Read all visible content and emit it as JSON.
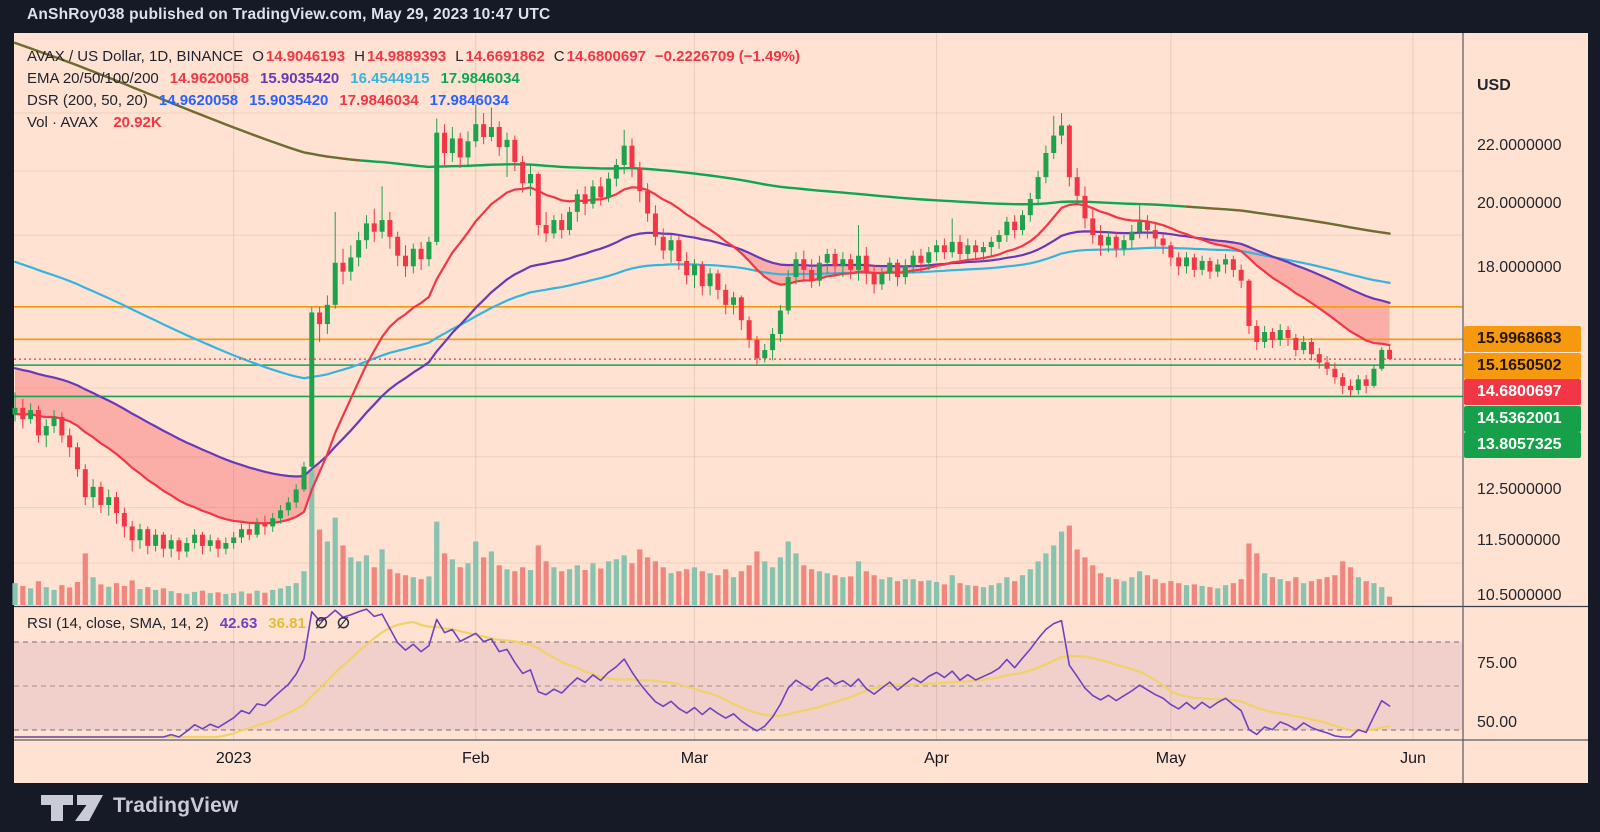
{
  "header": {
    "text": "AnShRoy038 published on TradingView.com, May 29, 2023 10:47 UTC"
  },
  "footer": {
    "brand": "TradingView"
  },
  "legend": {
    "symbol": {
      "title": "AVAX / US Dollar, 1D, BINANCE",
      "items": [
        {
          "k": "O",
          "v": "14.9046193"
        },
        {
          "k": "H",
          "v": "14.9889393"
        },
        {
          "k": "L",
          "v": "14.6691862"
        },
        {
          "k": "C",
          "v": "14.6800697"
        }
      ],
      "change": "−0.2226709 (−1.49%)",
      "value_color": "#f23645"
    },
    "ema": {
      "title": "EMA 20/50/100/200",
      "values": [
        {
          "text": "14.9620058",
          "color": "#f23645"
        },
        {
          "text": "15.9035420",
          "color": "#673ab7"
        },
        {
          "text": "16.4544915",
          "color": "#33b5e0"
        },
        {
          "text": "17.9846034",
          "color": "#0ca750"
        }
      ]
    },
    "dsr": {
      "title": "DSR (200, 50, 20)",
      "values": [
        {
          "text": "14.9620058",
          "color": "#2962ff"
        },
        {
          "text": "15.9035420",
          "color": "#2962ff"
        },
        {
          "text": "17.9846034",
          "color": "#f23645"
        },
        {
          "text": "17.9846034",
          "color": "#2962ff"
        }
      ]
    },
    "vol": {
      "title": "Vol · AVAX",
      "value": "20.92K",
      "value_color": "#f23645"
    }
  },
  "rsi_legend": {
    "title": "RSI (14, close, SMA, 14, 2)",
    "values": [
      {
        "text": "42.63",
        "color": "#6f42c1"
      },
      {
        "text": "36.81",
        "color": "#e3bd37"
      }
    ],
    "icons": [
      "empty-set-icon",
      "empty-set-icon"
    ]
  },
  "price_axis": {
    "unit": "USD",
    "ticks": [
      {
        "price": 22,
        "label": "22.0000000"
      },
      {
        "price": 20,
        "label": "20.0000000"
      },
      {
        "price": 18,
        "label": "18.0000000"
      },
      {
        "price": 12.5,
        "label": "12.5000000"
      },
      {
        "price": 11.5,
        "label": "11.5000000"
      },
      {
        "price": 10.5,
        "label": "10.5000000"
      }
    ],
    "badges": [
      {
        "label": "15.9968683",
        "price": 15.9968683,
        "bg": "#f7990f",
        "fg": "#241603"
      },
      {
        "label": "15.1650502",
        "price": 15.1650502,
        "bg": "#f7990f",
        "fg": "#241603"
      },
      {
        "label": "14.6800697",
        "price": 14.6800697,
        "bg": "#f23645",
        "fg": "#ffffff",
        "last": true
      },
      {
        "label": "14.5362001",
        "price": 14.5362001,
        "bg": "#16a049",
        "fg": "#ffffff"
      },
      {
        "label": "13.8057325",
        "price": 13.8057325,
        "bg": "#16a049",
        "fg": "#ffffff"
      }
    ]
  },
  "rsi_axis": {
    "ticks": [
      {
        "value": 75,
        "label": "75.00"
      },
      {
        "value": 50,
        "label": "50.00"
      }
    ]
  },
  "time_axis": {
    "labels": [
      {
        "label": "2023",
        "i": 28
      },
      {
        "label": "Feb",
        "i": 59
      },
      {
        "label": "Mar",
        "i": 87
      },
      {
        "label": "Apr",
        "i": 118
      },
      {
        "label": "May",
        "i": 148
      },
      {
        "label": "Jun",
        "i": 179
      }
    ]
  },
  "chart_data": {
    "type": "candlestick",
    "title": "AVAX / US Dollar, 1D, BINANCE",
    "interval": "1D",
    "scale": "log",
    "start_date": "2022-12-04",
    "ohlc_last": {
      "o": 14.9046193,
      "h": 14.9889393,
      "l": 14.6691862,
      "c": 14.6800697,
      "change": -0.2226709,
      "change_pct": -1.49
    },
    "first_open": 13.4,
    "candles_hlc": [
      [
        13.9,
        13.25,
        13.55
      ],
      [
        13.75,
        13.1,
        13.3
      ],
      [
        13.65,
        13.2,
        13.5
      ],
      [
        13.6,
        12.8,
        12.95
      ],
      [
        13.3,
        12.7,
        13.15
      ],
      [
        13.5,
        13.0,
        13.35
      ],
      [
        13.45,
        12.8,
        12.95
      ],
      [
        13.1,
        12.5,
        12.7
      ],
      [
        12.8,
        12.1,
        12.25
      ],
      [
        12.35,
        11.55,
        11.7
      ],
      [
        12.05,
        11.5,
        11.9
      ],
      [
        12.0,
        11.4,
        11.55
      ],
      [
        11.85,
        11.35,
        11.7
      ],
      [
        11.8,
        11.2,
        11.4
      ],
      [
        11.5,
        10.95,
        11.15
      ],
      [
        11.25,
        10.7,
        10.9
      ],
      [
        11.2,
        10.75,
        11.1
      ],
      [
        11.15,
        10.65,
        10.8
      ],
      [
        11.1,
        10.7,
        11.0
      ],
      [
        11.05,
        10.6,
        10.75
      ],
      [
        11.0,
        10.6,
        10.9
      ],
      [
        10.95,
        10.55,
        10.7
      ],
      [
        10.95,
        10.6,
        10.85
      ],
      [
        11.1,
        10.75,
        11.0
      ],
      [
        11.05,
        10.65,
        10.8
      ],
      [
        11.0,
        10.7,
        10.9
      ],
      [
        10.95,
        10.6,
        10.75
      ],
      [
        10.95,
        10.65,
        10.85
      ],
      [
        11.05,
        10.75,
        10.95
      ],
      [
        11.2,
        10.85,
        11.1
      ],
      [
        11.2,
        10.9,
        11.0
      ],
      [
        11.3,
        10.95,
        11.2
      ],
      [
        11.35,
        11.0,
        11.15
      ],
      [
        11.4,
        11.05,
        11.3
      ],
      [
        11.55,
        11.2,
        11.45
      ],
      [
        11.7,
        11.35,
        11.6
      ],
      [
        11.95,
        11.5,
        11.85
      ],
      [
        12.4,
        11.8,
        12.3
      ],
      [
        16.0,
        12.25,
        15.85
      ],
      [
        16.0,
        15.1,
        15.55
      ],
      [
        16.3,
        15.3,
        16.05
      ],
      [
        18.7,
        15.95,
        17.2
      ],
      [
        17.6,
        16.6,
        16.95
      ],
      [
        17.7,
        16.7,
        17.35
      ],
      [
        18.1,
        17.1,
        17.85
      ],
      [
        18.6,
        17.6,
        18.35
      ],
      [
        18.8,
        17.8,
        18.1
      ],
      [
        19.5,
        17.9,
        18.45
      ],
      [
        18.7,
        17.6,
        17.95
      ],
      [
        18.1,
        17.1,
        17.4
      ],
      [
        17.7,
        16.8,
        17.1
      ],
      [
        17.75,
        16.9,
        17.6
      ],
      [
        17.8,
        17.0,
        17.3
      ],
      [
        17.95,
        17.1,
        17.8
      ],
      [
        21.8,
        17.7,
        21.3
      ],
      [
        21.6,
        20.2,
        20.6
      ],
      [
        21.5,
        20.3,
        21.1
      ],
      [
        21.3,
        20.1,
        20.45
      ],
      [
        21.35,
        20.2,
        21.0
      ],
      [
        22.3,
        20.8,
        21.6
      ],
      [
        22.0,
        20.9,
        21.15
      ],
      [
        22.2,
        21.0,
        21.5
      ],
      [
        21.7,
        20.5,
        20.8
      ],
      [
        21.3,
        19.8,
        21.05
      ],
      [
        21.2,
        20.0,
        20.3
      ],
      [
        20.5,
        19.3,
        19.6
      ],
      [
        20.2,
        19.2,
        19.9
      ],
      [
        19.95,
        18.0,
        18.3
      ],
      [
        18.7,
        17.8,
        18.05
      ],
      [
        18.6,
        17.9,
        18.45
      ],
      [
        18.65,
        17.9,
        18.15
      ],
      [
        18.85,
        18.0,
        18.7
      ],
      [
        19.4,
        18.4,
        19.25
      ],
      [
        19.5,
        18.6,
        18.95
      ],
      [
        19.7,
        18.8,
        19.5
      ],
      [
        19.8,
        18.9,
        19.15
      ],
      [
        19.95,
        19.0,
        19.75
      ],
      [
        20.4,
        19.5,
        20.2
      ],
      [
        21.4,
        19.9,
        20.85
      ],
      [
        21.1,
        19.8,
        20.1
      ],
      [
        20.3,
        19.0,
        19.35
      ],
      [
        19.6,
        18.4,
        18.65
      ],
      [
        18.9,
        17.7,
        17.95
      ],
      [
        18.2,
        17.3,
        17.55
      ],
      [
        18.0,
        17.2,
        17.85
      ],
      [
        18.0,
        17.0,
        17.25
      ],
      [
        17.5,
        16.6,
        16.85
      ],
      [
        17.3,
        16.5,
        17.15
      ],
      [
        17.25,
        16.3,
        16.55
      ],
      [
        17.05,
        16.3,
        16.9
      ],
      [
        17.0,
        16.2,
        16.45
      ],
      [
        16.6,
        15.8,
        16.05
      ],
      [
        16.4,
        15.8,
        16.25
      ],
      [
        16.3,
        15.4,
        15.65
      ],
      [
        15.75,
        14.95,
        15.15
      ],
      [
        15.25,
        14.54,
        14.7
      ],
      [
        15.05,
        14.6,
        14.9
      ],
      [
        15.45,
        14.65,
        15.3
      ],
      [
        16.05,
        15.1,
        15.9
      ],
      [
        17.0,
        15.8,
        16.8
      ],
      [
        17.5,
        16.6,
        17.3
      ],
      [
        17.55,
        16.7,
        17.0
      ],
      [
        17.3,
        16.5,
        16.7
      ],
      [
        17.4,
        16.55,
        17.2
      ],
      [
        17.6,
        16.9,
        17.45
      ],
      [
        17.6,
        16.85,
        17.1
      ],
      [
        17.5,
        16.8,
        17.3
      ],
      [
        17.45,
        16.75,
        17.0
      ],
      [
        18.3,
        16.7,
        17.4
      ],
      [
        17.65,
        16.6,
        16.9
      ],
      [
        17.15,
        16.35,
        16.6
      ],
      [
        17.05,
        16.45,
        16.9
      ],
      [
        17.35,
        16.7,
        17.2
      ],
      [
        17.3,
        16.55,
        16.8
      ],
      [
        17.3,
        16.6,
        17.1
      ],
      [
        17.55,
        16.9,
        17.4
      ],
      [
        17.6,
        16.95,
        17.2
      ],
      [
        17.65,
        17.0,
        17.5
      ],
      [
        17.85,
        17.25,
        17.7
      ],
      [
        17.9,
        17.3,
        17.5
      ],
      [
        18.5,
        17.35,
        17.8
      ],
      [
        18.0,
        17.2,
        17.45
      ],
      [
        17.9,
        17.25,
        17.7
      ],
      [
        17.85,
        17.3,
        17.5
      ],
      [
        17.8,
        17.25,
        17.65
      ],
      [
        17.95,
        17.4,
        17.8
      ],
      [
        18.15,
        17.6,
        18.0
      ],
      [
        18.55,
        17.8,
        18.4
      ],
      [
        18.6,
        17.9,
        18.15
      ],
      [
        18.75,
        18.0,
        18.6
      ],
      [
        19.3,
        18.4,
        19.1
      ],
      [
        20.0,
        18.9,
        19.8
      ],
      [
        20.85,
        19.6,
        20.6
      ],
      [
        21.9,
        20.4,
        21.2
      ],
      [
        22.0,
        20.9,
        21.55
      ],
      [
        21.6,
        19.5,
        19.8
      ],
      [
        20.1,
        18.9,
        19.2
      ],
      [
        19.5,
        18.2,
        18.5
      ],
      [
        18.8,
        17.75,
        18.0
      ],
      [
        18.3,
        17.4,
        17.7
      ],
      [
        18.1,
        17.5,
        17.95
      ],
      [
        18.1,
        17.35,
        17.6
      ],
      [
        18.0,
        17.4,
        17.85
      ],
      [
        18.3,
        17.6,
        18.1
      ],
      [
        18.9,
        17.9,
        18.4
      ],
      [
        18.6,
        17.9,
        18.15
      ],
      [
        18.4,
        17.65,
        17.9
      ],
      [
        18.05,
        17.45,
        17.7
      ],
      [
        17.8,
        17.1,
        17.35
      ],
      [
        17.5,
        16.85,
        17.1
      ],
      [
        17.5,
        16.9,
        17.35
      ],
      [
        17.45,
        16.8,
        17.0
      ],
      [
        17.4,
        16.85,
        17.25
      ],
      [
        17.35,
        16.75,
        16.95
      ],
      [
        17.3,
        16.8,
        17.15
      ],
      [
        17.45,
        16.9,
        17.3
      ],
      [
        17.4,
        16.8,
        17.0
      ],
      [
        17.15,
        16.5,
        16.7
      ],
      [
        16.75,
        15.3,
        15.5
      ],
      [
        15.65,
        14.9,
        15.1
      ],
      [
        15.5,
        14.95,
        15.35
      ],
      [
        15.45,
        14.95,
        15.15
      ],
      [
        15.55,
        15.0,
        15.4
      ],
      [
        15.5,
        15.0,
        15.2
      ],
      [
        15.3,
        14.75,
        14.9
      ],
      [
        15.25,
        14.8,
        15.1
      ],
      [
        15.2,
        14.65,
        14.8
      ],
      [
        14.95,
        14.45,
        14.6
      ],
      [
        14.75,
        14.3,
        14.45
      ],
      [
        14.6,
        14.1,
        14.25
      ],
      [
        14.35,
        13.86,
        14.05
      ],
      [
        14.2,
        13.81,
        13.95
      ],
      [
        14.3,
        13.85,
        14.2
      ],
      [
        14.3,
        13.88,
        14.05
      ],
      [
        14.55,
        14.0,
        14.45
      ],
      [
        14.97,
        14.4,
        14.9046193
      ],
      [
        14.9889393,
        14.6691862,
        14.6800697
      ]
    ],
    "volumes_k": [
      55,
      48,
      42,
      60,
      45,
      38,
      50,
      44,
      58,
      130,
      70,
      52,
      46,
      55,
      48,
      62,
      40,
      45,
      38,
      42,
      35,
      30,
      28,
      33,
      36,
      30,
      32,
      28,
      30,
      34,
      29,
      36,
      31,
      38,
      42,
      48,
      55,
      85,
      340,
      190,
      160,
      220,
      150,
      120,
      110,
      125,
      95,
      140,
      90,
      80,
      75,
      70,
      65,
      72,
      210,
      130,
      115,
      95,
      105,
      160,
      120,
      135,
      100,
      90,
      85,
      95,
      88,
      150,
      110,
      95,
      85,
      90,
      100,
      88,
      105,
      92,
      110,
      115,
      125,
      105,
      140,
      120,
      110,
      95,
      80,
      85,
      90,
      95,
      85,
      80,
      75,
      90,
      70,
      85,
      100,
      135,
      110,
      95,
      120,
      160,
      130,
      100,
      90,
      85,
      80,
      75,
      70,
      72,
      110,
      85,
      75,
      65,
      70,
      60,
      65,
      65,
      60,
      62,
      58,
      52,
      75,
      55,
      50,
      48,
      45,
      50,
      55,
      70,
      60,
      75,
      90,
      110,
      130,
      150,
      185,
      200,
      140,
      120,
      100,
      80,
      70,
      65,
      60,
      70,
      85,
      75,
      65,
      55,
      60,
      55,
      50,
      52,
      48,
      45,
      42,
      50,
      55,
      65,
      155,
      130,
      80,
      70,
      65,
      60,
      70,
      55,
      60,
      65,
      70,
      75,
      110,
      95,
      70,
      60,
      55,
      45,
      21
    ],
    "volume_current_label": "20.92K",
    "emas": {
      "periods": [
        20,
        50,
        100,
        200
      ],
      "seeds": [
        13.4,
        14.5,
        17.3,
        24.8
      ],
      "colors": [
        "#f23645",
        "#673ab7",
        "#33b5e0",
        "#0ca750"
      ]
    },
    "dsr": {
      "params": [
        200,
        50,
        20
      ],
      "bear_fill": "rgba(242,54,69,0.30)",
      "overlay_color": "#b5471f"
    },
    "levels": {
      "orange_rays": [
        15.9968683,
        15.1650502
      ],
      "green_lines": [
        14.5362001,
        13.8057325
      ],
      "last_price_dotted": 14.6800697
    },
    "price_gridlines": [
      22,
      20,
      18,
      16,
      14,
      12.5,
      11.5,
      10.5
    ],
    "rsi": {
      "period": 14,
      "sma_period": 14,
      "upper": 70,
      "middle": 50,
      "lower": 30,
      "current": 42.63,
      "sma_current": 36.81,
      "line_color": "#6d43c0",
      "sma_color": "#f0d268",
      "band_fill": "rgba(146,84,160,0.13)"
    }
  }
}
